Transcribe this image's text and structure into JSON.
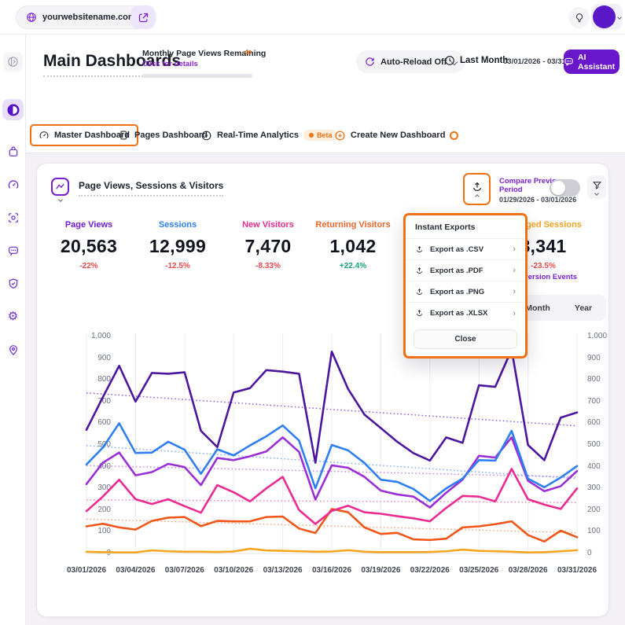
{
  "topbar": {
    "site": "yourwebsitename.com"
  },
  "header": {
    "title": "Main Dashboards",
    "quota_label": "Monthly Page Views Remaining",
    "quota_link": "Click for details",
    "quota_infinity": "∞",
    "auto_reload": "Auto-Reload Off",
    "period_label": "Last Month",
    "period_range": "03/01/2026 - 03/31/2026",
    "ai_assistant": "AI Assistant"
  },
  "tabs": [
    {
      "label": "Master Dashboard",
      "active": true
    },
    {
      "label": "Pages Dashboard",
      "active": false
    },
    {
      "label": "Real-Time Analytics",
      "active": false,
      "badge": "Beta"
    },
    {
      "label": "Create New Dashboard",
      "active": false
    }
  ],
  "card": {
    "title": "Page Views, Sessions & Visitors",
    "compare_label": "Compare Previous Period",
    "compare_range": "01/29/2026 - 03/01/2026",
    "compare_toggle_on": false
  },
  "metrics": [
    {
      "label": "Page Views",
      "value": "20,563",
      "change": "-22%",
      "dir": "down",
      "color": "#6d1bd2"
    },
    {
      "label": "Sessions",
      "value": "12,999",
      "change": "-12.5%",
      "dir": "down",
      "color": "#2e7ff1"
    },
    {
      "label": "New Visitors",
      "value": "7,470",
      "change": "-8.33%",
      "dir": "down",
      "color": "#eb2b92"
    },
    {
      "label": "Returning Visitors",
      "value": "1,042",
      "change": "+22.4%",
      "dir": "up",
      "color": "#f0662e"
    },
    {
      "label": "Engaged Sessions",
      "value": "8,341",
      "change": "-23.5%",
      "dir": "down",
      "color": "#f6a21f",
      "link": "Conversion Events"
    }
  ],
  "range_buttons": [
    "Month",
    "Year"
  ],
  "export_popup": {
    "title": "Instant Exports",
    "items": [
      "Export as .CSV",
      "Export as .PDF",
      "Export as .PNG",
      "Export as .XLSX"
    ],
    "chevron": "›",
    "close_label": "Close"
  },
  "chart_data": {
    "type": "line",
    "title": "Page Views, Sessions & Visitors",
    "ylim": [
      0,
      1000
    ],
    "grid": "vertical",
    "legend": "none",
    "x": [
      "03/01/2026",
      "03/02/2026",
      "03/03/2026",
      "03/04/2026",
      "03/05/2026",
      "03/06/2026",
      "03/07/2026",
      "03/08/2026",
      "03/09/2026",
      "03/10/2026",
      "03/11/2026",
      "03/12/2026",
      "03/13/2026",
      "03/14/2026",
      "03/15/2026",
      "03/16/2026",
      "03/17/2026",
      "03/18/2026",
      "03/19/2026",
      "03/20/2026",
      "03/21/2026",
      "03/22/2026",
      "03/23/2026",
      "03/24/2026",
      "03/25/2026",
      "03/26/2026",
      "03/27/2026",
      "03/28/2026",
      "03/29/2026",
      "03/30/2026",
      "03/31/2026"
    ],
    "x_tick_labels": [
      "03/01/2026",
      "03/04/2026",
      "03/07/2026",
      "03/10/2026",
      "03/13/2026",
      "03/16/2026",
      "03/19/2026",
      "03/22/2026",
      "03/25/2026",
      "03/28/2026",
      "03/31/2026"
    ],
    "x_tick_indices": [
      0,
      3,
      6,
      9,
      12,
      15,
      18,
      21,
      24,
      27,
      30
    ],
    "y_tick_values": [
      1000,
      900,
      800,
      700,
      600,
      500,
      400,
      300,
      200,
      100,
      0
    ],
    "y_tick_labels": [
      "1,000",
      "900",
      "800",
      "700",
      "600",
      "500",
      "400",
      "300",
      "200",
      "100",
      "0"
    ],
    "series": [
      {
        "name": "Page Views",
        "color": "#4c16a1",
        "values": [
          570,
          720,
          865,
          700,
          832,
          828,
          835,
          565,
          490,
          742,
          762,
          845,
          838,
          828,
          418,
          930,
          758,
          640,
          578,
          515,
          462,
          428,
          535,
          510,
          775,
          768,
          940,
          500,
          430,
          626,
          650
        ]
      },
      {
        "name": "Sessions",
        "color": "#2e7ff1",
        "values": [
          410,
          488,
          600,
          463,
          465,
          515,
          478,
          367,
          480,
          452,
          498,
          540,
          590,
          520,
          300,
          500,
          475,
          417,
          340,
          330,
          297,
          242,
          300,
          345,
          430,
          428,
          565,
          345,
          305,
          350,
          403
        ]
      },
      {
        "name": "Engaged Sessions",
        "color": "#9b2fd6",
        "values": [
          320,
          418,
          465,
          360,
          375,
          413,
          398,
          315,
          440,
          430,
          448,
          470,
          535,
          468,
          248,
          406,
          395,
          353,
          290,
          272,
          262,
          212,
          280,
          340,
          450,
          442,
          535,
          335,
          287,
          310,
          380
        ]
      },
      {
        "name": "New Visitors",
        "color": "#eb2b92",
        "values": [
          195,
          262,
          340,
          250,
          228,
          250,
          218,
          188,
          315,
          282,
          240,
          300,
          353,
          200,
          136,
          196,
          220,
          190,
          183,
          172,
          162,
          148,
          210,
          265,
          262,
          240,
          390,
          250,
          225,
          205,
          300
        ]
      },
      {
        "name": "Returning Visitors",
        "color": "#f05617",
        "values": [
          125,
          137,
          120,
          110,
          150,
          165,
          168,
          126,
          150,
          148,
          148,
          168,
          170,
          115,
          94,
          205,
          190,
          120,
          90,
          95,
          65,
          62,
          68,
          120,
          125,
          135,
          148,
          85,
          55,
          105,
          75
        ]
      },
      {
        "name": "Conversion Events",
        "color": "#f6a51c",
        "values": [
          8,
          6,
          5,
          5,
          14,
          10,
          8,
          8,
          7,
          9,
          22,
          14,
          12,
          10,
          8,
          9,
          15,
          8,
          6,
          6,
          6,
          7,
          10,
          18,
          12,
          10,
          8,
          5,
          6,
          10,
          15
        ]
      }
    ],
    "trendlines": [
      {
        "name": "Page Views trend",
        "color": "#8a4fd8",
        "from": 740,
        "to": 588
      },
      {
        "name": "Sessions trend",
        "color": "#6ea8f5",
        "from": 497,
        "to": 345
      },
      {
        "name": "Engaged Sessions trend",
        "color": "#bf7ce6",
        "from": 405,
        "to": 352
      },
      {
        "name": "New Visitors trend",
        "color": "#f27bbd",
        "from": 247,
        "to": 235
      },
      {
        "name": "Returning Visitors trend",
        "color": "#f59a6b",
        "from": 158,
        "to": 95
      },
      {
        "name": "Conversion Events trend",
        "color": "#f8c härm",
        "from": 10,
        "to": 14
      }
    ]
  }
}
